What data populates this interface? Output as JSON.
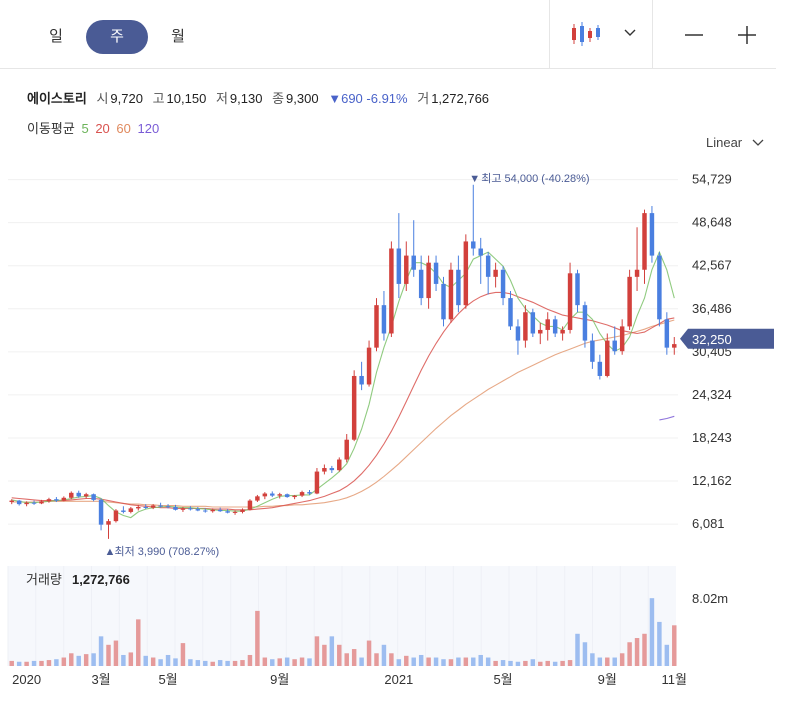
{
  "tabs": [
    {
      "label": "일",
      "active": false
    },
    {
      "label": "주",
      "active": true
    },
    {
      "label": "월",
      "active": false
    }
  ],
  "toolbar": {
    "chart_type_icon": "candlestick-icon",
    "dropdown_icon": "chevron-down-icon",
    "zoom_out_icon": "minus-icon",
    "zoom_in_icon": "plus-icon"
  },
  "stock": {
    "name": "에이스토리",
    "open_label": "시",
    "open": "9,720",
    "high_label": "고",
    "high": "10,150",
    "low_label": "저",
    "low": "9,130",
    "close_label": "종",
    "close": "9,300",
    "change": "▼690",
    "change_pct": "-6.91%",
    "volume_label": "거",
    "volume": "1,272,766"
  },
  "moving_average": {
    "label": "이동평균",
    "periods": [
      {
        "label": "5",
        "color": "#6cb35a"
      },
      {
        "label": "20",
        "color": "#d9534f"
      },
      {
        "label": "60",
        "color": "#e08a5e"
      },
      {
        "label": "120",
        "color": "#7a5cd6"
      }
    ]
  },
  "scale_label": "Linear",
  "colors": {
    "up": "#d2403c",
    "down": "#4a7fe0",
    "accent": "#4a5b95"
  },
  "chart_data": {
    "type": "candlestick",
    "yticks": [
      6081,
      12162,
      18243,
      24324,
      30405,
      36486,
      42567,
      48648,
      54729
    ],
    "ytick_labels": [
      "6,081",
      "12,162",
      "18,243",
      "24,324",
      "30,405",
      "36,486",
      "42,567",
      "48,648",
      "54,729"
    ],
    "ylim": [
      2000,
      57500
    ],
    "current_price_label": "32,250",
    "current_price": 32250,
    "high_annotation": "최고 54,000 (-40.28%)",
    "high_value": 54000,
    "low_annotation": "최저 3,990 (708.27%)",
    "low_value": 3990,
    "x_labels": [
      "2020",
      "3월",
      "5월",
      "9월",
      "2021",
      "5월",
      "9월",
      "11월"
    ],
    "candles": [
      [
        9200,
        9600,
        8900,
        9400
      ],
      [
        9400,
        9500,
        8700,
        8900
      ],
      [
        8900,
        9300,
        8600,
        9100
      ],
      [
        9100,
        9400,
        8800,
        9000
      ],
      [
        9000,
        9500,
        8900,
        9300
      ],
      [
        9300,
        9800,
        9100,
        9600
      ],
      [
        9600,
        9900,
        9200,
        9400
      ],
      [
        9400,
        10000,
        9300,
        9800
      ],
      [
        9800,
        10700,
        9600,
        10500
      ],
      [
        10500,
        10800,
        9800,
        10000
      ],
      [
        10000,
        10500,
        9700,
        10300
      ],
      [
        10300,
        10400,
        9300,
        9500
      ],
      [
        9500,
        9700,
        5200,
        6000
      ],
      [
        6000,
        6800,
        3990,
        6500
      ],
      [
        6500,
        8200,
        6300,
        8000
      ],
      [
        8000,
        8600,
        7600,
        7800
      ],
      [
        7800,
        8500,
        7600,
        8300
      ],
      [
        8300,
        8800,
        8000,
        8500
      ],
      [
        8500,
        8900,
        8200,
        8400
      ],
      [
        8400,
        8900,
        8200,
        8700
      ],
      [
        8700,
        9100,
        8400,
        8600
      ],
      [
        8600,
        8900,
        8300,
        8500
      ],
      [
        8500,
        8800,
        8000,
        8100
      ],
      [
        8100,
        8500,
        7800,
        8300
      ],
      [
        8300,
        8600,
        8000,
        8200
      ],
      [
        8200,
        8500,
        7900,
        8000
      ],
      [
        8000,
        8300,
        7700,
        7900
      ],
      [
        7900,
        8300,
        7700,
        8100
      ],
      [
        8100,
        8400,
        7800,
        7900
      ],
      [
        7900,
        8200,
        7600,
        7700
      ],
      [
        7700,
        8000,
        7400,
        7800
      ],
      [
        7800,
        8300,
        7600,
        8100
      ],
      [
        8100,
        9600,
        8000,
        9400
      ],
      [
        9400,
        10200,
        9200,
        10000
      ],
      [
        10000,
        10600,
        9600,
        10400
      ],
      [
        10400,
        10700,
        9900,
        10100
      ],
      [
        10100,
        10500,
        9700,
        10300
      ],
      [
        10300,
        10400,
        9800,
        9900
      ],
      [
        9900,
        10200,
        9600,
        10100
      ],
      [
        10100,
        10800,
        9900,
        10600
      ],
      [
        10600,
        10900,
        10200,
        10400
      ],
      [
        10400,
        14000,
        10300,
        13500
      ],
      [
        13500,
        14500,
        13100,
        14000
      ],
      [
        14000,
        14300,
        13300,
        13700
      ],
      [
        13700,
        15500,
        13500,
        15200
      ],
      [
        15200,
        18800,
        14800,
        18000
      ],
      [
        18000,
        27800,
        17800,
        27000
      ],
      [
        27000,
        29000,
        25000,
        25800
      ],
      [
        25800,
        32000,
        25500,
        31000
      ],
      [
        31000,
        38000,
        30500,
        37000
      ],
      [
        37000,
        39000,
        32000,
        33000
      ],
      [
        33000,
        46000,
        32500,
        45000
      ],
      [
        45000,
        50000,
        38000,
        40000
      ],
      [
        40000,
        46000,
        39000,
        44000
      ],
      [
        44000,
        49000,
        41000,
        42000
      ],
      [
        42000,
        44000,
        37000,
        38000
      ],
      [
        38000,
        44000,
        36500,
        43000
      ],
      [
        43000,
        44000,
        39000,
        40000
      ],
      [
        40000,
        41000,
        34000,
        35000
      ],
      [
        35000,
        43000,
        34500,
        42000
      ],
      [
        42000,
        44000,
        36000,
        37000
      ],
      [
        37000,
        47000,
        36500,
        46000
      ],
      [
        46000,
        54000,
        44000,
        45000
      ],
      [
        45000,
        46500,
        40000,
        44000
      ],
      [
        44000,
        44500,
        38500,
        41000
      ],
      [
        41000,
        43000,
        39500,
        42000
      ],
      [
        42000,
        42500,
        37000,
        38000
      ],
      [
        38000,
        39000,
        33500,
        34000
      ],
      [
        34000,
        35000,
        30000,
        32000
      ],
      [
        32000,
        37000,
        31000,
        36000
      ],
      [
        36000,
        36500,
        32500,
        33000
      ],
      [
        33000,
        34500,
        31500,
        33500
      ],
      [
        33500,
        36000,
        32000,
        35000
      ],
      [
        35000,
        35500,
        32500,
        33000
      ],
      [
        33000,
        34000,
        32000,
        33500
      ],
      [
        33500,
        43000,
        33000,
        41500
      ],
      [
        41500,
        42000,
        36000,
        37000
      ],
      [
        37000,
        37500,
        31000,
        32000
      ],
      [
        32000,
        33000,
        28000,
        29000
      ],
      [
        29000,
        30000,
        26500,
        27000
      ],
      [
        27000,
        33000,
        26800,
        32000
      ],
      [
        32000,
        34000,
        30000,
        30500
      ],
      [
        30500,
        35000,
        30000,
        34000
      ],
      [
        34000,
        42000,
        33500,
        41000
      ],
      [
        41000,
        48000,
        39000,
        42000
      ],
      [
        42000,
        50500,
        40000,
        50000
      ],
      [
        50000,
        51000,
        43000,
        44000
      ],
      [
        44000,
        44500,
        34000,
        35000
      ],
      [
        35000,
        36000,
        30000,
        31000
      ],
      [
        31000,
        32500,
        30000,
        31500
      ]
    ],
    "volume_max_label": "8.02m",
    "volume_max": 8020000,
    "volume_label": "거래량",
    "volume_value": "1,272,766",
    "volumes": [
      0.6,
      0.5,
      0.5,
      0.6,
      0.6,
      0.7,
      0.8,
      1.0,
      1.5,
      1.2,
      1.4,
      1.5,
      3.5,
      2.5,
      3.0,
      1.3,
      1.6,
      5.5,
      1.2,
      1.0,
      0.8,
      1.3,
      0.9,
      2.7,
      0.8,
      0.7,
      0.6,
      0.5,
      0.7,
      0.6,
      0.6,
      0.7,
      1.3,
      6.5,
      1.0,
      0.8,
      0.9,
      1.0,
      0.8,
      1.0,
      0.9,
      3.5,
      2.5,
      3.5,
      2.5,
      1.5,
      2.0,
      1.0,
      3.0,
      1.5,
      2.5,
      1.5,
      0.8,
      1.2,
      1.0,
      1.3,
      1.0,
      1.0,
      0.8,
      0.8,
      1.0,
      1.0,
      1.0,
      1.3,
      1.0,
      0.6,
      0.7,
      0.6,
      0.5,
      0.6,
      0.8,
      0.5,
      0.6,
      0.5,
      0.6,
      0.7,
      3.8,
      2.8,
      1.5,
      1.0,
      1.0,
      1.0,
      1.5,
      2.8,
      3.3,
      3.8,
      8.0,
      5.2,
      2.5,
      4.8
    ],
    "ma5": [
      9500,
      9300,
      9100,
      9100,
      9200,
      9300,
      9400,
      9500,
      9700,
      9900,
      10000,
      10100,
      9700,
      8700,
      7800,
      7300,
      7000,
      7800,
      8200,
      8400,
      8500,
      8600,
      8500,
      8400,
      8400,
      8300,
      8200,
      8100,
      8000,
      8000,
      7900,
      7900,
      8200,
      8600,
      9100,
      9600,
      10000,
      10100,
      10100,
      10200,
      10200,
      11000,
      11800,
      12600,
      13500,
      14600,
      16800,
      19500,
      23000,
      27500,
      31000,
      34000,
      37500,
      40500,
      43000,
      43000,
      42500,
      41500,
      40000,
      39500,
      40500,
      41500,
      43500,
      44000,
      44500,
      43500,
      42500,
      40500,
      38000,
      36500,
      35500,
      34500,
      34000,
      34000,
      33500,
      35000,
      36000,
      36000,
      35000,
      33000,
      31500,
      30500,
      31000,
      32500,
      35500,
      38000,
      42000,
      44500,
      42000,
      38000
    ],
    "ma20": [
      9800,
      9700,
      9600,
      9500,
      9400,
      9400,
      9400,
      9400,
      9500,
      9600,
      9700,
      9700,
      9600,
      9400,
      9200,
      9000,
      8800,
      8700,
      8600,
      8500,
      8400,
      8400,
      8300,
      8300,
      8300,
      8300,
      8300,
      8200,
      8200,
      8200,
      8100,
      8100,
      8100,
      8200,
      8300,
      8400,
      8600,
      8800,
      9000,
      9200,
      9400,
      9700,
      10000,
      10400,
      10800,
      11400,
      12200,
      13200,
      14400,
      15800,
      17400,
      19200,
      21200,
      23400,
      25600,
      27800,
      29800,
      31600,
      33200,
      34600,
      35800,
      36800,
      37600,
      38200,
      38600,
      38800,
      38800,
      38600,
      38200,
      37800,
      37400,
      36900,
      36400,
      36000,
      35600,
      35400,
      35200,
      35000,
      34800,
      34500,
      34200,
      33800,
      33400,
      33200,
      33000,
      33200,
      33800,
      34400,
      35000,
      35200
    ],
    "ma60": [
      9200,
      9200,
      9200,
      9200,
      9200,
      9300,
      9300,
      9300,
      9300,
      9300,
      9300,
      9300,
      9300,
      9200,
      9100,
      9000,
      8900,
      8900,
      8800,
      8800,
      8700,
      8700,
      8700,
      8600,
      8600,
      8600,
      8600,
      8500,
      8500,
      8500,
      8500,
      8500,
      8500,
      8500,
      8600,
      8600,
      8700,
      8700,
      8800,
      8800,
      8900,
      9000,
      9100,
      9300,
      9500,
      9800,
      10200,
      10700,
      11300,
      12000,
      12800,
      13700,
      14600,
      15600,
      16600,
      17600,
      18600,
      19600,
      20500,
      21400,
      22200,
      23000,
      23700,
      24400,
      25100,
      25700,
      26300,
      26900,
      27500,
      28000,
      28500,
      29000,
      29500,
      30000,
      30400,
      30800,
      31200,
      31600,
      31900,
      32100,
      32300,
      32500,
      32700,
      33000,
      33300,
      33600,
      34000,
      34300,
      34600,
      34900
    ],
    "ma120": [
      null,
      null,
      null,
      null,
      null,
      null,
      null,
      null,
      null,
      null,
      null,
      null,
      null,
      null,
      null,
      null,
      null,
      null,
      null,
      null,
      null,
      null,
      null,
      null,
      null,
      null,
      null,
      null,
      null,
      null,
      null,
      null,
      null,
      null,
      null,
      null,
      null,
      null,
      null,
      null,
      null,
      null,
      null,
      null,
      null,
      null,
      null,
      null,
      null,
      null,
      null,
      null,
      null,
      null,
      null,
      null,
      null,
      null,
      null,
      null,
      null,
      null,
      null,
      null,
      null,
      null,
      null,
      null,
      null,
      null,
      null,
      null,
      null,
      null,
      null,
      null,
      null,
      null,
      null,
      null,
      null,
      null,
      null,
      null,
      null,
      null,
      null,
      20800,
      21000,
      21300
    ]
  }
}
